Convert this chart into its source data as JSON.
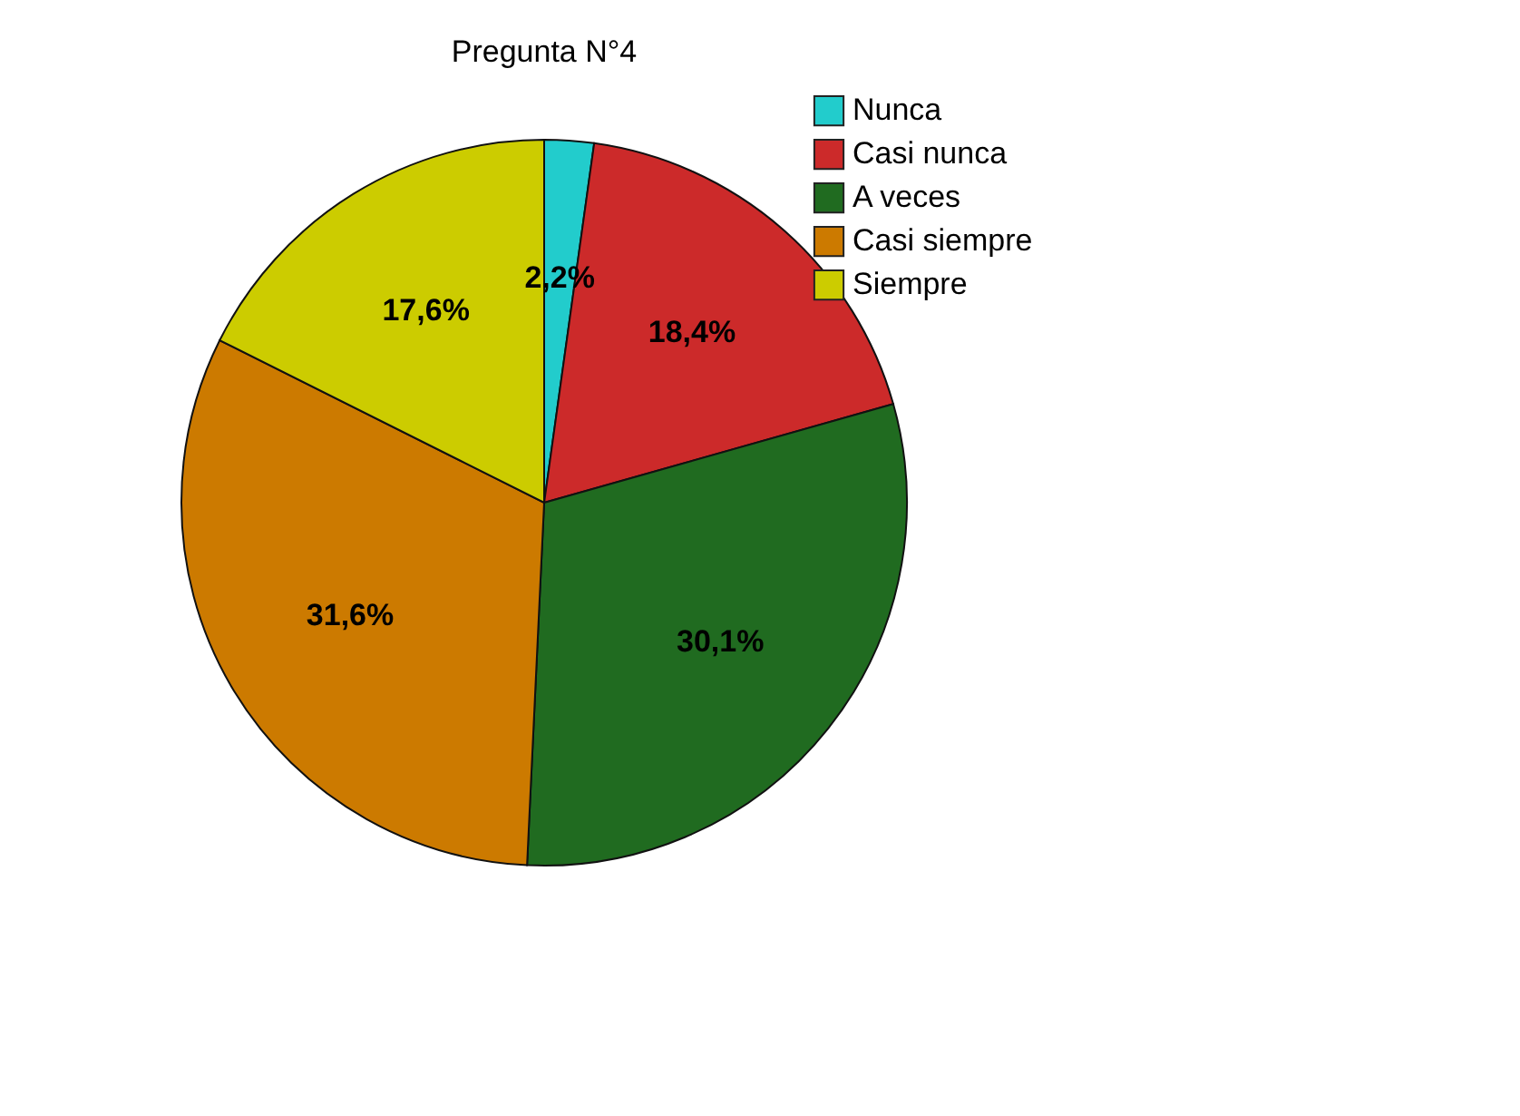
{
  "chart_data": {
    "type": "pie",
    "title": "Pregunta N°4",
    "categories": [
      "Nunca",
      "Casi nunca",
      "A veces",
      "Casi siempre",
      "Siempre"
    ],
    "values": [
      2.2,
      18.4,
      30.1,
      31.6,
      17.6
    ],
    "colors": [
      "#22cccc",
      "#cc2a2a",
      "#206b20",
      "#cc7a00",
      "#cccc00"
    ],
    "value_labels": [
      "2,2%",
      "18,4%",
      "30,1%",
      "31,6%",
      "17,6%"
    ],
    "legend": "top right"
  }
}
